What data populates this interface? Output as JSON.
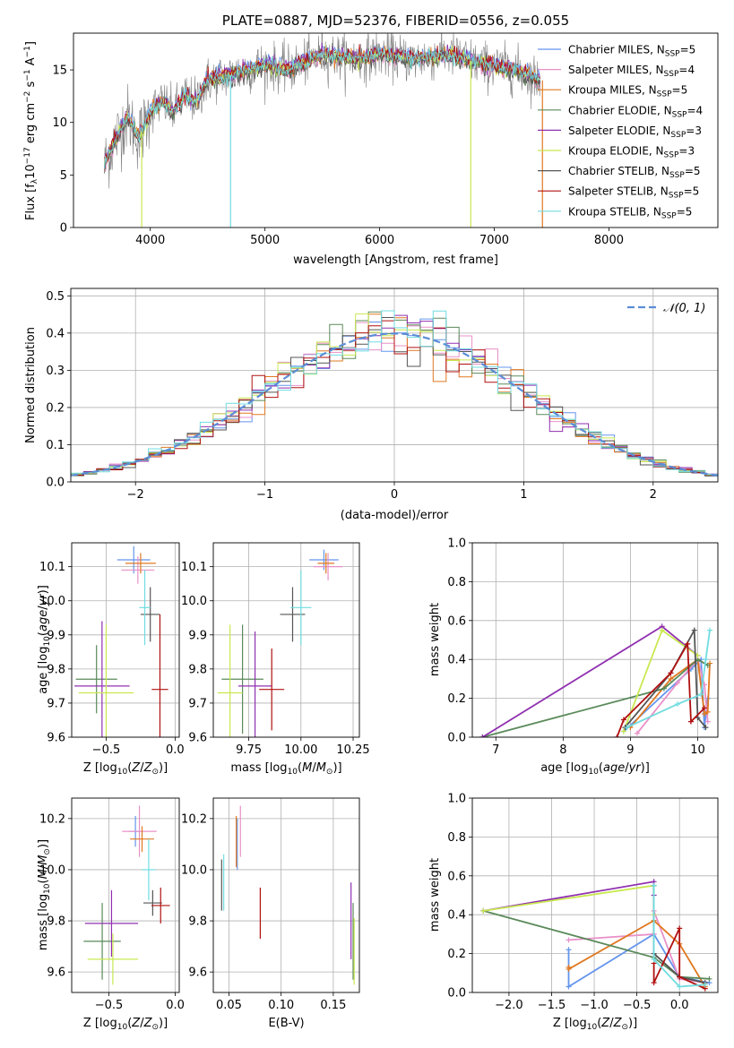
{
  "colors": {
    "chabrier_miles": "#6495ed",
    "salpeter_miles": "#e890c8",
    "kroupa_miles": "#e07820",
    "chabrier_elodie": "#5a8a5a",
    "salpeter_elodie": "#9030b0",
    "kroupa_elodie": "#c8e850",
    "chabrier_stelib": "#555555",
    "salpeter_stelib": "#b01010",
    "kroupa_stelib": "#70dce0",
    "spectrum": "#808080",
    "normal": "#5b8dd6"
  },
  "chart_data": [
    {
      "id": "spectrum",
      "type": "line",
      "title": "PLATE=0887, MJD=52376, FIBERID=0556, z=0.055",
      "xlabel": "wavelength [Angstrom, rest frame]",
      "ylabel": "Flux [f",
      "ylabel_parts": [
        "Flux [f",
        "λ",
        "10",
        "−17",
        " erg cm",
        "−2",
        " s",
        "−1",
        " A",
        "−1",
        "]"
      ],
      "xlim": [
        3330,
        8950
      ],
      "ylim": [
        0,
        18.5
      ],
      "xticks": [
        4000,
        5000,
        6000,
        7000,
        8000
      ],
      "yticks": [
        0,
        5,
        10,
        15
      ],
      "grid": false,
      "legend_position": "upper-right",
      "series": [
        {
          "name": "Chabrier MILES, N",
          "sub": "SSP",
          "suffix": "=5",
          "color": "#6495ed"
        },
        {
          "name": "Salpeter MILES, N",
          "sub": "SSP",
          "suffix": "=4",
          "color": "#e890c8"
        },
        {
          "name": "Kroupa MILES, N",
          "sub": "SSP",
          "suffix": "=5",
          "color": "#e07820"
        },
        {
          "name": "Chabrier ELODIE, N",
          "sub": "SSP",
          "suffix": "=4",
          "color": "#5a8a5a"
        },
        {
          "name": "Salpeter ELODIE, N",
          "sub": "SSP",
          "suffix": "=3",
          "color": "#9030b0"
        },
        {
          "name": "Kroupa ELODIE, N",
          "sub": "SSP",
          "suffix": "=3",
          "color": "#c8e850"
        },
        {
          "name": "Chabrier STELIB, N",
          "sub": "SSP",
          "suffix": "=5",
          "color": "#555555"
        },
        {
          "name": "Salpeter STELIB, N",
          "sub": "SSP",
          "suffix": "=5",
          "color": "#b01010"
        },
        {
          "name": "Kroupa STELIB, N",
          "sub": "SSP",
          "suffix": "=5",
          "color": "#70dce0"
        }
      ],
      "model_curve": {
        "x": [
          3600,
          3700,
          3800,
          3900,
          4000,
          4100,
          4200,
          4300,
          4400,
          4500,
          4700,
          5000,
          5200,
          5500,
          5800,
          6000,
          6300,
          6600,
          6900,
          7200,
          7400
        ],
        "y": [
          6.0,
          8.5,
          10.5,
          8.5,
          11.0,
          12.0,
          11.0,
          12.5,
          12.0,
          14.0,
          14.5,
          15.5,
          15.0,
          16.5,
          16.0,
          16.5,
          16.0,
          16.5,
          15.5,
          15.0,
          14.0
        ]
      }
    },
    {
      "id": "residual_hist",
      "type": "step",
      "xlabel": "(data-model)/error",
      "ylabel": "Normed distribution",
      "xlim": [
        -2.5,
        2.5
      ],
      "ylim": [
        0,
        0.52
      ],
      "xticks": [
        -2,
        -1,
        0,
        1,
        2
      ],
      "yticks": [
        0.0,
        0.1,
        0.2,
        0.3,
        0.4,
        0.5
      ],
      "grid": true,
      "legend": "𝒩(0, 1)",
      "legend_position": "upper-right",
      "bin_edges_start": -2.5,
      "bin_width": 0.1,
      "normal_curve": {
        "mu": 0,
        "sigma": 1
      }
    },
    {
      "id": "age_vs_Z",
      "type": "errorbar",
      "xlabel": "Z [log",
      "ylabel": "age  [log",
      "xlim": [
        -0.75,
        0.03
      ],
      "ylim": [
        9.6,
        10.17
      ],
      "xticks": [
        -0.5,
        0.0
      ],
      "yticks": [
        9.6,
        9.7,
        9.8,
        9.9,
        10.0,
        10.1
      ],
      "grid": true,
      "points": [
        {
          "x": -0.3,
          "xerr": 0.12,
          "y": 10.12,
          "yerr": 0.04,
          "color": "#6495ed"
        },
        {
          "x": -0.27,
          "xerr": 0.12,
          "y": 10.09,
          "yerr": 0.04,
          "color": "#e890c8"
        },
        {
          "x": -0.25,
          "xerr": 0.11,
          "y": 10.11,
          "yerr": 0.03,
          "color": "#e07820"
        },
        {
          "x": -0.57,
          "xerr": 0.15,
          "y": 9.77,
          "yerr": 0.1,
          "color": "#5a8a5a"
        },
        {
          "x": -0.53,
          "xerr": 0.2,
          "y": 9.75,
          "yerr": 0.19,
          "color": "#9030b0"
        },
        {
          "x": -0.5,
          "xerr": 0.2,
          "y": 9.73,
          "yerr": 0.2,
          "color": "#c8e850"
        },
        {
          "x": -0.18,
          "xerr": 0.07,
          "y": 9.96,
          "yerr": 0.08,
          "color": "#555555"
        },
        {
          "x": -0.11,
          "xerr": 0.06,
          "y": 9.74,
          "yerr": 0.22,
          "color": "#b01010"
        },
        {
          "x": -0.22,
          "xerr": 0.04,
          "y": 9.98,
          "yerr": 0.11,
          "color": "#70dce0"
        }
      ]
    },
    {
      "id": "age_vs_mass",
      "type": "errorbar",
      "xlabel": "mass [log",
      "xlim": [
        9.58,
        10.28
      ],
      "ylim": [
        9.6,
        10.17
      ],
      "xticks": [
        9.75,
        10.0,
        10.25
      ],
      "xtick_labels": [
        "9.75",
        "10.00",
        "10.25"
      ],
      "yticks": [
        9.6,
        9.7,
        9.8,
        9.9,
        10.0,
        10.1
      ],
      "grid": true,
      "points": [
        {
          "x": 10.11,
          "xerr": 0.07,
          "y": 10.12,
          "yerr": 0.03,
          "color": "#6495ed"
        },
        {
          "x": 10.13,
          "xerr": 0.07,
          "y": 10.1,
          "yerr": 0.04,
          "color": "#e890c8"
        },
        {
          "x": 10.12,
          "xerr": 0.04,
          "y": 10.11,
          "yerr": 0.03,
          "color": "#e07820"
        },
        {
          "x": 9.72,
          "xerr": 0.1,
          "y": 9.77,
          "yerr": 0.16,
          "color": "#5a8a5a"
        },
        {
          "x": 9.78,
          "xerr": 0.08,
          "y": 9.75,
          "yerr": 0.16,
          "color": "#9030b0"
        },
        {
          "x": 9.66,
          "xerr": 0.06,
          "y": 9.73,
          "yerr": 0.2,
          "color": "#c8e850"
        },
        {
          "x": 9.96,
          "xerr": 0.06,
          "y": 9.96,
          "yerr": 0.08,
          "color": "#555555"
        },
        {
          "x": 9.86,
          "xerr": 0.06,
          "y": 9.74,
          "yerr": 0.12,
          "color": "#b01010"
        },
        {
          "x": 10.0,
          "xerr": 0.05,
          "y": 9.98,
          "yerr": 0.11,
          "color": "#70dce0"
        }
      ]
    },
    {
      "id": "massweight_vs_age",
      "type": "line",
      "xlabel": "age  [log",
      "ylabel": "mass weight",
      "xlim": [
        6.65,
        10.3
      ],
      "ylim": [
        0,
        1.0
      ],
      "xticks": [
        7,
        8,
        9,
        10
      ],
      "yticks": [
        0.0,
        0.2,
        0.4,
        0.6,
        0.8,
        1.0
      ],
      "grid": true,
      "series": [
        {
          "color": "#6495ed",
          "x": [
            8.9,
            9.9,
            10.05,
            10.1,
            10.15
          ],
          "y": [
            0.03,
            0.35,
            0.4,
            0.05,
            0.2
          ]
        },
        {
          "color": "#e890c8",
          "x": [
            9.1,
            9.7,
            10.0,
            10.1,
            10.15
          ],
          "y": [
            0.02,
            0.28,
            0.4,
            0.27,
            0.08
          ]
        },
        {
          "color": "#e07820",
          "x": [
            9.0,
            9.6,
            10.0,
            10.1,
            10.15,
            10.18
          ],
          "y": [
            0.05,
            0.3,
            0.4,
            0.12,
            0.13,
            0.38
          ]
        },
        {
          "color": "#5a8a5a",
          "x": [
            6.8,
            9.5,
            10.0,
            10.15
          ],
          "y": [
            0.0,
            0.25,
            0.4,
            0.37
          ]
        },
        {
          "color": "#9030b0",
          "x": [
            6.8,
            9.47,
            10.0
          ],
          "y": [
            0.0,
            0.57,
            0.42
          ]
        },
        {
          "color": "#c8e850",
          "x": [
            8.9,
            9.47,
            10.0
          ],
          "y": [
            0.03,
            0.55,
            0.42
          ]
        },
        {
          "color": "#555555",
          "x": [
            8.92,
            9.6,
            9.95,
            10.0,
            10.12
          ],
          "y": [
            0.05,
            0.33,
            0.55,
            0.1,
            0.05
          ]
        },
        {
          "color": "#b01010",
          "x": [
            8.8,
            8.9,
            9.6,
            9.85,
            9.9,
            10.1
          ],
          "y": [
            0.0,
            0.09,
            0.33,
            0.48,
            0.08,
            0.15
          ]
        },
        {
          "color": "#70dce0",
          "x": [
            8.95,
            9.7,
            10.05,
            10.12,
            10.18
          ],
          "y": [
            0.05,
            0.17,
            0.22,
            0.4,
            0.55
          ]
        }
      ]
    },
    {
      "id": "mass_vs_Z",
      "type": "errorbar",
      "xlabel": "Z [log",
      "ylabel": "mass [log",
      "xlim": [
        -0.78,
        0.03
      ],
      "ylim": [
        9.52,
        10.28
      ],
      "xticks": [
        -0.5,
        0.0
      ],
      "yticks": [
        9.6,
        9.8,
        10.0,
        10.2
      ],
      "grid": true,
      "points": [
        {
          "x": -0.3,
          "xerr": 0.05,
          "y": 10.15,
          "yerr": 0.06,
          "color": "#6495ed"
        },
        {
          "x": -0.27,
          "xerr": 0.13,
          "y": 10.15,
          "yerr": 0.1,
          "color": "#e890c8"
        },
        {
          "x": -0.25,
          "xerr": 0.09,
          "y": 10.12,
          "yerr": 0.05,
          "color": "#e07820"
        },
        {
          "x": -0.55,
          "xerr": 0.14,
          "y": 9.72,
          "yerr": 0.15,
          "color": "#5a8a5a"
        },
        {
          "x": -0.48,
          "xerr": 0.2,
          "y": 9.79,
          "yerr": 0.13,
          "color": "#9030b0"
        },
        {
          "x": -0.47,
          "xerr": 0.19,
          "y": 9.65,
          "yerr": 0.1,
          "color": "#c8e850"
        },
        {
          "x": -0.17,
          "xerr": 0.07,
          "y": 9.87,
          "yerr": 0.05,
          "color": "#555555"
        },
        {
          "x": -0.11,
          "xerr": 0.07,
          "y": 9.86,
          "yerr": 0.07,
          "color": "#b01010"
        },
        {
          "x": -0.2,
          "xerr": 0.05,
          "y": 10.0,
          "yerr": 0.12,
          "color": "#70dce0"
        }
      ]
    },
    {
      "id": "mass_vs_EBV",
      "type": "errorbar",
      "xlabel": "E(B-V)",
      "xlim": [
        0.035,
        0.175
      ],
      "ylim": [
        9.52,
        10.28
      ],
      "xticks": [
        0.05,
        0.1,
        0.15
      ],
      "xtick_labels": [
        "0.05",
        "0.10",
        "0.15"
      ],
      "yticks": [
        9.6,
        9.8,
        10.0,
        10.2
      ],
      "grid": true,
      "points": [
        {
          "x": 0.058,
          "xerr": 0,
          "y": 10.1,
          "yerr": 0.1,
          "color": "#6495ed"
        },
        {
          "x": 0.061,
          "xerr": 0,
          "y": 10.15,
          "yerr": 0.1,
          "color": "#e890c8"
        },
        {
          "x": 0.057,
          "xerr": 0,
          "y": 10.11,
          "yerr": 0.1,
          "color": "#e07820"
        },
        {
          "x": 0.169,
          "xerr": 0,
          "y": 9.72,
          "yerr": 0.15,
          "color": "#5a8a5a"
        },
        {
          "x": 0.167,
          "xerr": 0,
          "y": 9.8,
          "yerr": 0.15,
          "color": "#9030b0"
        },
        {
          "x": 0.17,
          "xerr": 0,
          "y": 9.68,
          "yerr": 0.13,
          "color": "#c8e850"
        },
        {
          "x": 0.043,
          "xerr": 0,
          "y": 9.94,
          "yerr": 0.1,
          "color": "#555555"
        },
        {
          "x": 0.08,
          "xerr": 0,
          "y": 9.83,
          "yerr": 0.1,
          "color": "#b01010"
        },
        {
          "x": 0.045,
          "xerr": 0,
          "y": 9.95,
          "yerr": 0.11,
          "color": "#70dce0"
        }
      ]
    },
    {
      "id": "massweight_vs_Z",
      "type": "line",
      "xlabel": "Z [log",
      "ylabel": "mass weight",
      "xlim": [
        -2.43,
        0.45
      ],
      "ylim": [
        0,
        1.0
      ],
      "xticks": [
        -2.0,
        -1.5,
        -1.0,
        -0.5,
        0.0
      ],
      "xtick_labels": [
        "−2.0",
        "−1.5",
        "−1.0",
        "−0.5",
        "0.0"
      ],
      "yticks": [
        0.0,
        0.2,
        0.4,
        0.6,
        0.8,
        1.0
      ],
      "grid": true,
      "series": [
        {
          "color": "#6495ed",
          "x": [
            -1.3,
            -1.3,
            -0.3,
            0.0,
            0.35
          ],
          "y": [
            0.22,
            0.03,
            0.3,
            0.08,
            0.05
          ]
        },
        {
          "color": "#e890c8",
          "x": [
            -1.3,
            -0.3,
            -0.3,
            0.0,
            0.3
          ],
          "y": [
            0.27,
            0.3,
            0.42,
            0.07,
            0.05
          ]
        },
        {
          "color": "#e07820",
          "x": [
            -1.3,
            -1.3,
            -0.3,
            0.0,
            0.3
          ],
          "y": [
            0.13,
            0.12,
            0.37,
            0.25,
            0.03
          ]
        },
        {
          "color": "#5a8a5a",
          "x": [
            -2.3,
            -0.3,
            0.0,
            0.35
          ],
          "y": [
            0.42,
            0.18,
            0.08,
            0.07
          ]
        },
        {
          "color": "#9030b0",
          "x": [
            -2.3,
            -0.3,
            -0.3
          ],
          "y": [
            0.42,
            0.57,
            0.5
          ]
        },
        {
          "color": "#c8e850",
          "x": [
            -2.3,
            -0.3,
            -0.3
          ],
          "y": [
            0.42,
            0.55,
            0.4
          ]
        },
        {
          "color": "#555555",
          "x": [
            -0.3,
            -0.3,
            0.0,
            0.3
          ],
          "y": [
            0.55,
            0.2,
            0.08,
            0.05
          ]
        },
        {
          "color": "#b01010",
          "x": [
            -0.3,
            -0.3,
            0.0,
            0.0,
            0.3
          ],
          "y": [
            0.15,
            0.05,
            0.33,
            0.08,
            0.02
          ]
        },
        {
          "color": "#70dce0",
          "x": [
            -0.3,
            -0.3,
            0.0,
            0.3
          ],
          "y": [
            0.55,
            0.17,
            0.03,
            0.04
          ]
        }
      ]
    }
  ]
}
